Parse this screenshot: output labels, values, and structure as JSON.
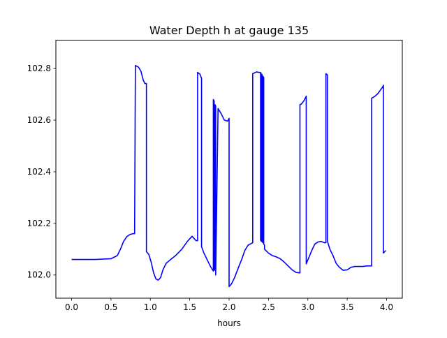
{
  "chart_data": {
    "type": "line",
    "title": "Water Depth h at gauge 135",
    "xlabel": "hours",
    "ylabel": "",
    "xlim": [
      -0.2,
      4.2
    ],
    "ylim": [
      101.91,
      102.91
    ],
    "xticks": [
      0.0,
      0.5,
      1.0,
      1.5,
      2.0,
      2.5,
      3.0,
      3.5,
      4.0
    ],
    "xtick_labels": [
      "0.0",
      "0.5",
      "1.0",
      "1.5",
      "2.0",
      "2.5",
      "3.0",
      "3.5",
      "4.0"
    ],
    "yticks": [
      102.0,
      102.2,
      102.4,
      102.6,
      102.8
    ],
    "ytick_labels": [
      "102.0",
      "102.2",
      "102.4",
      "102.6",
      "102.8"
    ],
    "grid": false,
    "series": [
      {
        "name": "",
        "color": "#0000ff",
        "x": [
          0.0,
          0.3,
          0.5,
          0.58,
          0.62,
          0.66,
          0.7,
          0.74,
          0.78,
          0.8,
          0.81,
          0.85,
          0.88,
          0.91,
          0.93,
          0.95,
          0.95,
          0.98,
          1.01,
          1.04,
          1.07,
          1.1,
          1.13,
          1.16,
          1.2,
          1.25,
          1.32,
          1.4,
          1.47,
          1.53,
          1.58,
          1.6,
          1.6,
          1.63,
          1.65,
          1.65,
          1.68,
          1.72,
          1.76,
          1.79,
          1.8,
          1.8,
          1.81,
          1.81,
          1.82,
          1.82,
          1.83,
          1.83,
          1.86,
          1.9,
          1.94,
          1.98,
          2.0,
          2.0,
          2.03,
          2.07,
          2.12,
          2.16,
          2.2,
          2.24,
          2.3,
          2.3,
          2.35,
          2.38,
          2.4,
          2.4,
          2.41,
          2.41,
          2.42,
          2.42,
          2.43,
          2.43,
          2.44,
          2.44,
          2.45,
          2.45,
          2.5,
          2.55,
          2.6,
          2.65,
          2.7,
          2.75,
          2.8,
          2.85,
          2.9,
          2.9,
          2.92,
          2.95,
          2.98,
          2.98,
          3.01,
          3.05,
          3.09,
          3.13,
          3.17,
          3.21,
          3.23,
          3.23,
          3.25,
          3.25,
          3.28,
          3.32,
          3.36,
          3.4,
          3.45,
          3.5,
          3.55,
          3.6,
          3.65,
          3.7,
          3.75,
          3.81,
          3.81,
          3.85,
          3.89,
          3.93,
          3.95,
          3.96,
          3.96,
          3.97,
          3.99
        ],
        "y": [
          102.06,
          102.06,
          102.063,
          102.075,
          102.1,
          102.13,
          102.148,
          102.157,
          102.16,
          102.16,
          102.812,
          102.805,
          102.79,
          102.755,
          102.742,
          102.742,
          102.09,
          102.08,
          102.05,
          102.01,
          101.985,
          101.98,
          101.99,
          102.02,
          102.045,
          102.058,
          102.075,
          102.1,
          102.13,
          102.15,
          102.133,
          102.133,
          102.785,
          102.778,
          102.762,
          102.11,
          102.085,
          102.06,
          102.035,
          102.02,
          102.015,
          102.68,
          102.675,
          102.02,
          102.018,
          102.66,
          102.655,
          102.0,
          102.645,
          102.625,
          102.6,
          102.596,
          102.607,
          101.955,
          101.965,
          101.99,
          102.03,
          102.06,
          102.095,
          102.115,
          102.125,
          102.78,
          102.787,
          102.785,
          102.785,
          102.135,
          102.13,
          102.78,
          102.775,
          102.13,
          102.125,
          102.77,
          102.765,
          102.12,
          102.115,
          102.1,
          102.085,
          102.075,
          102.07,
          102.063,
          102.05,
          102.035,
          102.02,
          102.01,
          102.008,
          102.66,
          102.663,
          102.675,
          102.693,
          102.043,
          102.065,
          102.095,
          102.12,
          102.128,
          102.13,
          102.125,
          102.125,
          102.78,
          102.775,
          102.13,
          102.1,
          102.075,
          102.045,
          102.03,
          102.018,
          102.02,
          102.03,
          102.033,
          102.033,
          102.033,
          102.035,
          102.035,
          102.685,
          102.692,
          102.703,
          102.72,
          102.728,
          102.735,
          102.085,
          102.088,
          102.095
        ]
      }
    ]
  }
}
